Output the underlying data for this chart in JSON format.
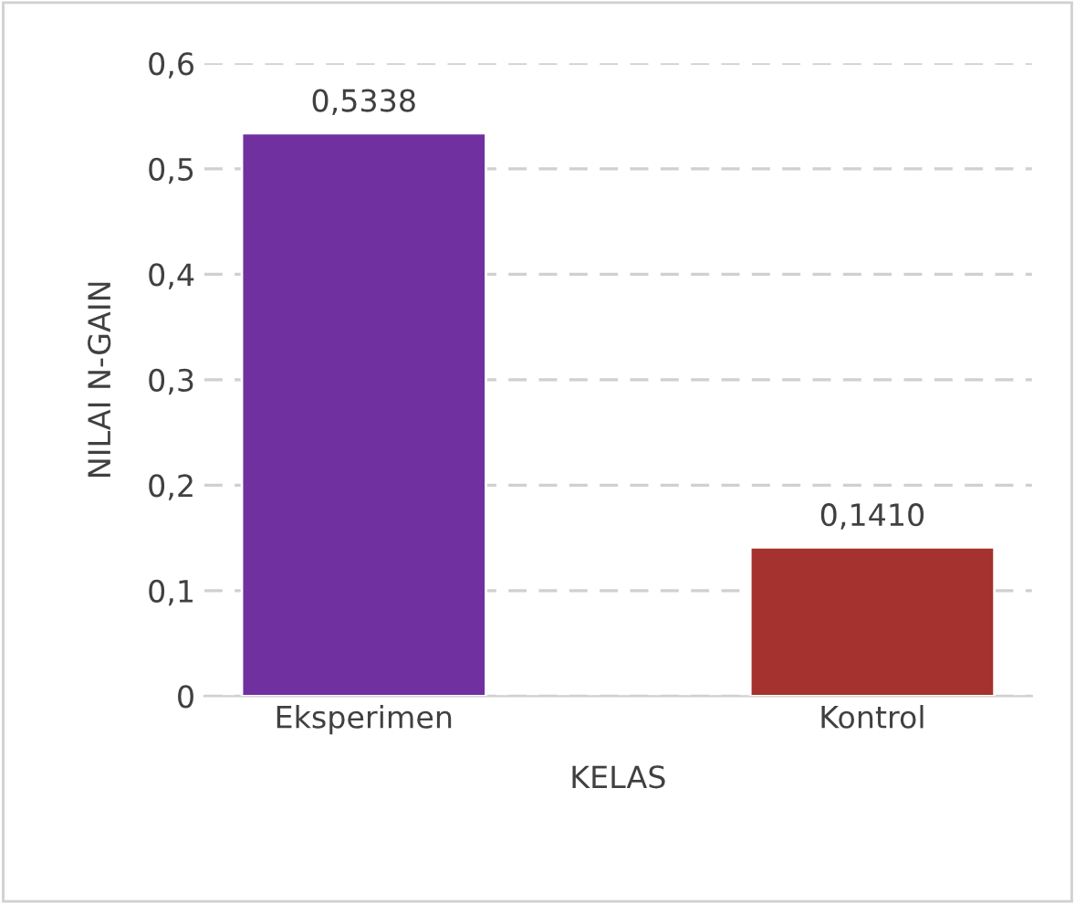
{
  "chart_data": {
    "type": "bar",
    "xlabel": "KELAS",
    "ylabel": "NILAI N-GAIN",
    "categories": [
      "Eksperimen",
      "Kontrol"
    ],
    "values": [
      0.5338,
      0.141
    ],
    "colors": [
      "#7030a0",
      "#a5322e"
    ],
    "value_labels": [
      "0,5338",
      "0,1410"
    ],
    "ylim": [
      0,
      0.6
    ],
    "yticks": [
      {
        "value": 0,
        "label": "0"
      },
      {
        "value": 0.1,
        "label": "0,1"
      },
      {
        "value": 0.2,
        "label": "0,2"
      },
      {
        "value": 0.3,
        "label": "0,3"
      },
      {
        "value": 0.4,
        "label": "0,4"
      },
      {
        "value": 0.5,
        "label": "0,5"
      },
      {
        "value": 0.6,
        "label": "0,6"
      }
    ],
    "grid": "y",
    "legend": false
  }
}
